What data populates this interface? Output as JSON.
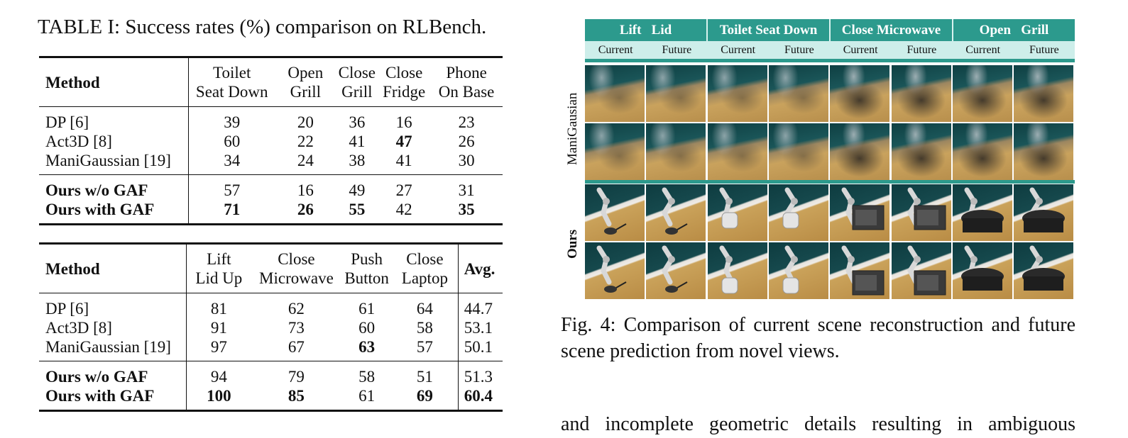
{
  "table_caption": "TABLE I: Success rates (%) comparison on RLBench.",
  "table1": {
    "method_header": "Method",
    "columns": [
      [
        "Toilet",
        "Seat Down"
      ],
      [
        "Open",
        "Grill"
      ],
      [
        "Close",
        "Grill"
      ],
      [
        "Close",
        "Fridge"
      ],
      [
        "Phone",
        "On Base"
      ]
    ],
    "rows": [
      {
        "method": "DP [6]",
        "values": [
          "39",
          "20",
          "36",
          "16",
          "23"
        ],
        "bold_method": false,
        "bold": []
      },
      {
        "method": "Act3D [8]",
        "values": [
          "60",
          "22",
          "41",
          "47",
          "26"
        ],
        "bold_method": false,
        "bold": [
          3
        ]
      },
      {
        "method": "ManiGaussian [19]",
        "values": [
          "34",
          "24",
          "38",
          "41",
          "30"
        ],
        "bold_method": false,
        "bold": []
      },
      {
        "method": "Ours w/o GAF",
        "values": [
          "57",
          "16",
          "49",
          "27",
          "31"
        ],
        "bold_method": true,
        "bold": []
      },
      {
        "method": "Ours with GAF",
        "values": [
          "71",
          "26",
          "55",
          "42",
          "35"
        ],
        "bold_method": true,
        "bold": [
          0,
          1,
          2,
          4
        ]
      }
    ]
  },
  "table2": {
    "method_header": "Method",
    "columns": [
      [
        "Lift",
        "Lid Up"
      ],
      [
        "Close",
        "Microwave"
      ],
      [
        "Push",
        "Button"
      ],
      [
        "Close",
        "Laptop"
      ]
    ],
    "avg_header": "Avg.",
    "rows": [
      {
        "method": "DP [6]",
        "values": [
          "81",
          "62",
          "61",
          "64"
        ],
        "avg": "44.7",
        "bold_method": false,
        "bold": []
      },
      {
        "method": "Act3D [8]",
        "values": [
          "91",
          "73",
          "60",
          "58"
        ],
        "avg": "53.1",
        "bold_method": false,
        "bold": []
      },
      {
        "method": "ManiGaussian [19]",
        "values": [
          "97",
          "67",
          "63",
          "57"
        ],
        "avg": "50.1",
        "bold_method": false,
        "bold": [
          2
        ]
      },
      {
        "method": "Ours w/o GAF",
        "values": [
          "94",
          "79",
          "58",
          "51"
        ],
        "avg": "51.3",
        "bold_method": true,
        "bold": []
      },
      {
        "method": "Ours with GAF",
        "values": [
          "100",
          "85",
          "61",
          "69"
        ],
        "avg": "60.4",
        "bold_method": true,
        "bold": [
          0,
          1,
          3,
          "avg"
        ]
      }
    ]
  },
  "figure": {
    "tasks": [
      "Lift   Lid",
      "Toilet Seat Down",
      "Close Microwave",
      "Open   Grill"
    ],
    "subheaders": [
      "Current",
      "Future",
      "Current",
      "Future",
      "Current",
      "Future",
      "Current",
      "Future"
    ],
    "row_labels": [
      "ManiGausian",
      "Ours"
    ],
    "colors": {
      "header_bg": "#2c9a8d",
      "subheader_bg": "#cdeeea",
      "header_text": "#ffffff"
    }
  },
  "figure_caption": "Fig. 4: Comparison of current scene reconstruction and future scene prediction from novel views.",
  "body_text": "and incomplete geometric details resulting in ambiguous"
}
